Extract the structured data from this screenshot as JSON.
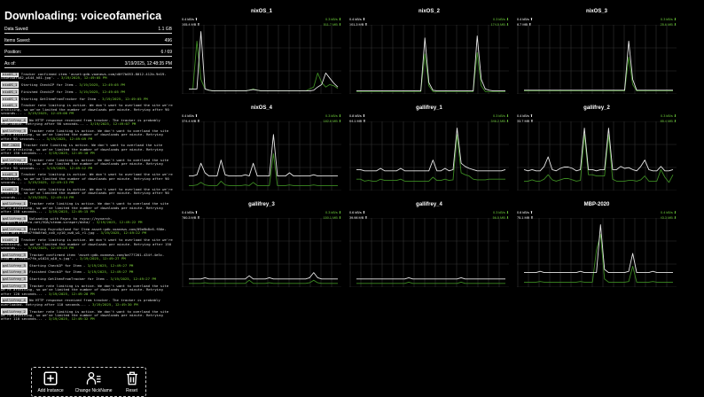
{
  "header": {
    "title": "Downloading: voiceofamerica"
  },
  "stats": [
    {
      "label": "Data Saved:",
      "value": "1.1 GB"
    },
    {
      "label": "Items Saved:",
      "value": "496"
    },
    {
      "label": "Position:",
      "value": "6 / 69"
    },
    {
      "label": "As of:",
      "value": "3/19/2025, 12:48:35 PM"
    }
  ],
  "log": [
    {
      "src": "nixOS_1",
      "msg": "Tracker confirmed item 'asset:gdb.voanews.com/d0f7b053-8012-412b-9d19-ca4e94af582_w144_h81.jpg'. -",
      "ts": "3/19/2025, 12:49:05 PM"
    },
    {
      "src": "nixOS_1",
      "msg": "Starting CheckIP for Item -",
      "ts": "3/19/2025, 12:49:05 PM"
    },
    {
      "src": "nixOS_1",
      "msg": "Finished CheckIP for Item -",
      "ts": "3/19/2025, 12:49:05 PM"
    },
    {
      "src": "nixOS_1",
      "msg": "Starting GetItemFromTracker for Item -",
      "ts": "3/19/2025, 12:49:05 PM"
    },
    {
      "src": "nixOS_1",
      "msg": "Tracker rate limiting is active. We don't want to overload the site we're archiving, so we've limited the number of downloads per minute. Retrying after 90 seconds... -",
      "ts": "3/19/2025, 12:49:06 PM"
    },
    {
      "src": "gallifrey_4",
      "msg": "No HTTP response received from tracker. The tracker is probably overloaded. Retrying after 90 seconds... -",
      "ts": "3/19/2025, 12:49:07 PM"
    },
    {
      "src": "gallifrey_3",
      "msg": "Tracker rate limiting is active. We don't want to overload the site we're archiving, so we've limited the number of downloads per minute. Retrying after 90 seconds... -",
      "ts": "3/19/2025, 12:49:09 PM"
    },
    {
      "src": "MBP-2020",
      "msg": "Tracker rate limiting is active. We don't want to overload the site we're archiving, so we've limited the number of downloads per minute. Retrying after 150 seconds... -",
      "ts": "3/19/2025, 12:49:10 PM"
    },
    {
      "src": "gallifrey_2",
      "msg": "Tracker rate limiting is active. We don't want to overload the site we're archiving, so we've limited the number of downloads per minute. Retrying after 90 seconds... -",
      "ts": "3/19/2025, 12:49:12 PM"
    },
    {
      "src": "nixOS_3",
      "msg": "Tracker rate limiting is active. We don't want to overload the site we're archiving, so we've limited the number of downloads per minute. Retrying after 90 seconds... -",
      "ts": "3/19/2025, 12:49:13 PM"
    },
    {
      "src": "nixOS_2",
      "msg": "Tracker rate limiting is active. We don't want to overload the site we're archiving, so we've limited the number of downloads per minute. Retrying after 90 seconds... -",
      "ts": "3/19/2025, 12:49:14 PM"
    },
    {
      "src": "gallifrey_1",
      "msg": "Tracker rate limiting is active. We don't want to overload the site we're archiving, so we've limited the number of downloads per minute. Retrying after 150 seconds... -",
      "ts": "3/19/2025, 12:49:15 PM"
    },
    {
      "src": "gallifrey_3",
      "msg": "Uploading with Rsync to rsync://nyxarch-targets.atinfra.net/VOA/steam-scraper/data/ -",
      "ts": "3/19/2025, 12:49:22 PM"
    },
    {
      "src": "gallifrey_3",
      "msg": "Starting RsyncUpload for Item asset:gdb.voanews.com/09a9b8c6-f86e-4a35-8e7a-4bed7f6b8fa0_cx0_cy10_cw0_w1_r1.jpg -",
      "ts": "3/19/2025, 12:49:22 PM"
    },
    {
      "src": "nixOS_4",
      "msg": "Tracker rate limiting is active. We don't want to overload the site we're archiving, so we've limited the number of downloads per minute. Retrying after 150 seconds... -",
      "ts": "3/19/2025, 12:49:25 PM"
    },
    {
      "src": "gallifrey_3",
      "msg": "Tracker confirmed item 'asset:gdb.voanews.com/be777201-434f-4e5c-b34d-3e77ce03e7fb_w1024_q10_s.jpg'. -",
      "ts": "3/19/2025, 12:49:27 PM"
    },
    {
      "src": "gallifrey_3",
      "msg": "Starting CheckIP for Item -",
      "ts": "3/19/2025, 12:49:27 PM"
    },
    {
      "src": "gallifrey_3",
      "msg": "Finished CheckIP for Item -",
      "ts": "3/19/2025, 12:49:27 PM"
    },
    {
      "src": "gallifrey_3",
      "msg": "Starting GetItemFromTracker for Item -",
      "ts": "3/19/2025, 12:49:27 PM"
    },
    {
      "src": "gallifrey_3",
      "msg": "Tracker rate limiting is active. We don't want to overload the site we're archiving, so we've limited the number of downloads per minute. Retrying after 120 seconds... -",
      "ts": "3/19/2025, 12:49:28 PM"
    },
    {
      "src": "gallifrey_4",
      "msg": "No HTTP response received from tracker. The tracker is probably overloaded. Retrying after 110 seconds... -",
      "ts": "3/19/2025, 12:49:30 PM"
    },
    {
      "src": "gallifrey_2",
      "msg": "Tracker rate limiting is active. We don't want to overload the site we're archiving, so we've limited the number of downloads per minute. Retrying after 110 seconds... -",
      "ts": "3/19/2025, 12:49:32 PM"
    }
  ],
  "actions": [
    {
      "label": "Add Instance",
      "icon": "plus-square-icon"
    },
    {
      "label": "Change NickName",
      "icon": "user-list-icon"
    },
    {
      "label": "Reset",
      "icon": "trash-icon"
    }
  ],
  "colors": {
    "upload": "#e6e6e6",
    "download": "#3c8a22",
    "download_text": "#6fd13a"
  },
  "instances": [
    {
      "name": "nixOS_1",
      "up_rate": "0.4 kB/s ⬆",
      "up_total": "105.4 MB ⬆",
      "down_rate": "0.3 kB/s ⬇",
      "down_total": "511.7 MB ⬇",
      "upload": [
        5,
        5,
        5,
        95,
        5,
        3,
        2,
        2,
        2,
        2,
        2,
        2,
        2,
        2,
        2,
        3,
        4,
        3,
        2,
        2,
        2,
        2,
        2,
        2,
        2,
        2,
        2,
        2,
        2,
        2,
        2,
        3,
        8,
        12,
        30,
        22,
        14,
        8
      ],
      "download": [
        5,
        5,
        80,
        20,
        5,
        3,
        2,
        2,
        2,
        2,
        2,
        2,
        2,
        2,
        2,
        3,
        5,
        3,
        2,
        2,
        2,
        2,
        2,
        2,
        2,
        2,
        2,
        2,
        2,
        2,
        5,
        8,
        30,
        15,
        8,
        12,
        10,
        6
      ]
    },
    {
      "name": "nixOS_2",
      "up_rate": "0.4 kB/s ⬆",
      "up_total": "101.3 MB ⬆",
      "down_rate": "0.3 kB/s ⬇",
      "down_total": "174.5 MB ⬇",
      "upload": [
        2,
        2,
        2,
        2,
        2,
        2,
        2,
        2,
        2,
        2,
        2,
        2,
        2,
        2,
        2,
        2,
        2,
        85,
        15,
        3,
        2,
        2,
        2,
        2,
        2,
        2,
        2,
        2,
        2,
        2,
        88,
        20,
        5,
        3,
        2,
        2,
        2,
        2
      ],
      "download": [
        1,
        1,
        1,
        1,
        1,
        1,
        1,
        1,
        1,
        1,
        1,
        1,
        1,
        1,
        1,
        1,
        1,
        60,
        10,
        1,
        1,
        1,
        1,
        1,
        1,
        1,
        1,
        1,
        1,
        1,
        62,
        10,
        1,
        1,
        1,
        1,
        1,
        1
      ]
    },
    {
      "name": "nixOS_3",
      "up_rate": "0.4 kB/s ⬆",
      "up_total": "8.7 MB ⬆",
      "down_rate": "0.3 kB/s ⬇",
      "down_total": "25.6 MB ⬇",
      "upload": [
        3,
        3,
        3,
        3,
        3,
        3,
        3,
        3,
        3,
        3,
        3,
        3,
        3,
        3,
        3,
        3,
        3,
        3,
        3,
        3,
        3,
        3,
        3,
        3,
        3,
        3,
        80,
        20,
        3,
        3,
        3,
        3,
        3,
        3,
        3,
        3,
        3,
        3
      ],
      "download": [
        2,
        2,
        2,
        2,
        2,
        2,
        2,
        2,
        2,
        2,
        2,
        2,
        2,
        2,
        2,
        2,
        2,
        2,
        2,
        2,
        2,
        2,
        2,
        2,
        2,
        2,
        55,
        12,
        2,
        2,
        2,
        2,
        2,
        2,
        2,
        2,
        2,
        2
      ]
    },
    {
      "name": "nixOS_4",
      "up_rate": "0.4 kB/s ⬆",
      "up_total": "374.4 MB ⬆",
      "down_rate": "0.3 kB/s ⬇",
      "down_total": "182.8 MB ⬇",
      "upload": [
        20,
        20,
        22,
        40,
        25,
        20,
        20,
        20,
        45,
        22,
        20,
        20,
        20,
        20,
        22,
        20,
        40,
        20,
        20,
        20,
        20,
        85,
        20,
        20,
        20,
        25,
        20,
        20,
        20,
        20,
        20,
        22,
        20,
        20,
        20,
        20,
        20,
        20
      ],
      "download": [
        5,
        5,
        6,
        10,
        6,
        5,
        5,
        5,
        12,
        6,
        5,
        5,
        5,
        5,
        6,
        5,
        10,
        5,
        5,
        5,
        5,
        55,
        5,
        5,
        5,
        6,
        5,
        5,
        5,
        5,
        5,
        6,
        5,
        5,
        5,
        5,
        5,
        5
      ]
    },
    {
      "name": "gallifrey_1",
      "up_rate": "0.8 kB/s ⬆",
      "up_total": "64.1 MB ⬆",
      "down_rate": "0.3 kB/s ⬇",
      "down_total": "346.2 MB ⬇",
      "upload": [
        30,
        30,
        28,
        28,
        28,
        28,
        32,
        28,
        28,
        28,
        28,
        32,
        28,
        28,
        28,
        28,
        28,
        28,
        28,
        45,
        28,
        28,
        32,
        28,
        30,
        95,
        40,
        35,
        32,
        30,
        28,
        28,
        28,
        28,
        28,
        28,
        28,
        30
      ],
      "download": [
        15,
        15,
        12,
        13,
        12,
        12,
        15,
        13,
        13,
        13,
        13,
        15,
        12,
        12,
        12,
        12,
        12,
        12,
        12,
        18,
        13,
        13,
        15,
        13,
        14,
        85,
        25,
        22,
        20,
        15,
        14,
        14,
        14,
        15,
        15,
        15,
        15,
        15
      ]
    },
    {
      "name": "gallifrey_2",
      "up_rate": "0.4 kB/s ⬆",
      "up_total": "33.7 MB ⬆",
      "down_rate": "0.3 kB/s ⬇",
      "down_total": "85.4 MB ⬇",
      "upload": [
        30,
        28,
        30,
        28,
        28,
        35,
        50,
        30,
        28,
        32,
        34,
        34,
        32,
        28,
        30,
        95,
        30,
        30,
        28,
        30,
        30,
        95,
        30,
        30,
        35,
        32,
        33,
        30,
        28,
        35,
        45,
        30,
        28,
        28,
        35,
        28,
        28,
        30
      ],
      "download": [
        12,
        12,
        14,
        12,
        12,
        15,
        22,
        14,
        12,
        14,
        16,
        16,
        14,
        12,
        13,
        85,
        22,
        22,
        20,
        20,
        20,
        85,
        15,
        12,
        12,
        12,
        13,
        13,
        12,
        14,
        20,
        12,
        12,
        12,
        30,
        18,
        10,
        22
      ]
    },
    {
      "name": "gallifrey_3",
      "up_rate": "0.4 kB/s ⬆",
      "up_total": "780.3 MB ⬆",
      "down_rate": "0.3 kB/s ⬇",
      "down_total": "150.1 MB ⬇",
      "upload": [
        10,
        10,
        10,
        10,
        12,
        10,
        10,
        10,
        10,
        10,
        10,
        10,
        10,
        10,
        10,
        15,
        10,
        10,
        10,
        10,
        12,
        10,
        10,
        10,
        10,
        10,
        10,
        10,
        10,
        10,
        12,
        20,
        12,
        10,
        10,
        10,
        10,
        10
      ],
      "download": [
        3,
        3,
        3,
        3,
        4,
        3,
        3,
        3,
        3,
        3,
        3,
        3,
        3,
        3,
        3,
        8,
        3,
        3,
        3,
        3,
        4,
        3,
        3,
        3,
        3,
        3,
        3,
        3,
        3,
        3,
        4,
        8,
        4,
        3,
        3,
        3,
        3,
        3
      ]
    },
    {
      "name": "gallifrey_4",
      "up_rate": "0.6 kB/s ⬆",
      "up_total": "39.98 MB ⬆",
      "down_rate": "0.3 kB/s ⬇",
      "down_total": "56.5 MB ⬇",
      "upload": [
        10,
        10,
        10,
        10,
        10,
        10,
        10,
        10,
        10,
        10,
        10,
        10,
        10,
        12,
        10,
        10,
        10,
        10,
        10,
        10,
        10,
        10,
        10,
        10,
        10,
        10,
        12,
        10,
        10,
        10,
        10,
        10,
        10,
        10,
        10,
        10,
        10,
        10
      ],
      "download": [
        3,
        3,
        3,
        3,
        3,
        3,
        3,
        3,
        3,
        3,
        3,
        3,
        3,
        5,
        3,
        3,
        3,
        3,
        3,
        3,
        3,
        3,
        3,
        3,
        3,
        3,
        5,
        3,
        3,
        3,
        3,
        3,
        3,
        3,
        3,
        3,
        3,
        3
      ]
    },
    {
      "name": "MBP-2020",
      "up_rate": "0.6 kB/s ⬆",
      "up_total": "75.1 MB ⬆",
      "down_rate": "0.4 kB/s ⬇",
      "down_total": "43.3 MB ⬇",
      "upload": [
        20,
        20,
        20,
        20,
        22,
        20,
        20,
        20,
        20,
        20,
        20,
        20,
        20,
        20,
        22,
        20,
        20,
        20,
        20,
        95,
        25,
        20,
        20,
        20,
        20,
        20,
        22,
        50,
        20,
        20,
        20,
        20,
        22,
        20,
        20,
        20,
        20,
        20
      ],
      "download": [
        5,
        5,
        5,
        5,
        6,
        5,
        5,
        5,
        5,
        5,
        5,
        5,
        5,
        5,
        6,
        5,
        5,
        5,
        55,
        80,
        10,
        5,
        5,
        5,
        5,
        5,
        6,
        30,
        5,
        5,
        5,
        5,
        6,
        5,
        5,
        5,
        5,
        5
      ]
    }
  ]
}
